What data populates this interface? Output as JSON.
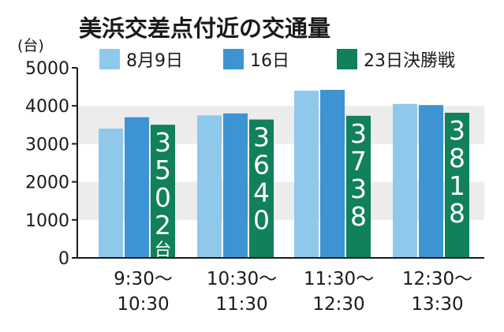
{
  "chart_data": {
    "type": "bar",
    "title": "美浜交差点付近の交通量",
    "unit_label": "(台)",
    "ylim": [
      0,
      5000
    ],
    "yticks": [
      "5000",
      "4000",
      "3000",
      "2000",
      "1000",
      "0"
    ],
    "categories": [
      [
        "9:30〜",
        "10:30"
      ],
      [
        "10:30〜",
        "11:30"
      ],
      [
        "11:30〜",
        "12:30"
      ],
      [
        "12:30〜",
        "13:30"
      ]
    ],
    "series": [
      {
        "name": "8月9日",
        "color": "#8ec9ec",
        "values": [
          3400,
          3750,
          4400,
          4050
        ]
      },
      {
        "name": "16日",
        "color": "#3e93d3",
        "values": [
          3700,
          3800,
          4420,
          4020
        ]
      },
      {
        "name": "23日決勝戦",
        "color": "#10815a",
        "values": [
          3502,
          3640,
          3738,
          3818
        ]
      }
    ],
    "data_labels": [
      "3502",
      "3640",
      "3738",
      "3818"
    ],
    "data_label_unit": "台",
    "grid_bands": true,
    "legend_position": "top"
  }
}
